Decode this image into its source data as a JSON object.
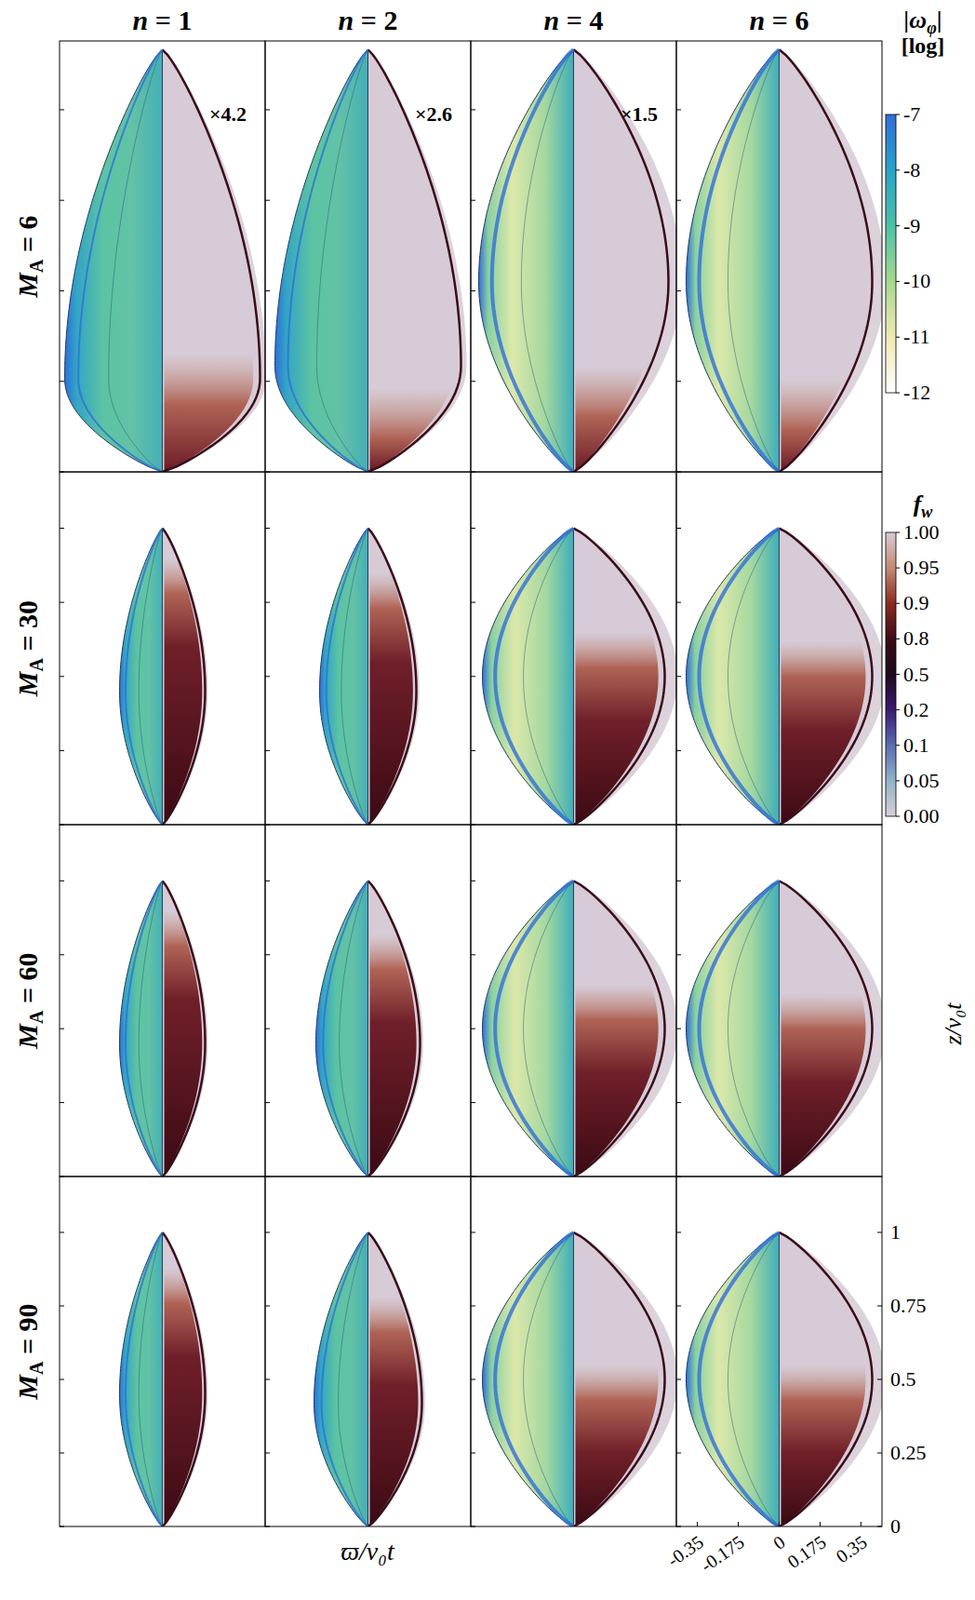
{
  "chart_data": {
    "type": "image_grid",
    "columns": [
      {
        "symbol": "n",
        "rest": " = 1"
      },
      {
        "symbol": "n",
        "rest": " = 2"
      },
      {
        "symbol": "n",
        "rest": " = 4"
      },
      {
        "symbol": "n",
        "rest": " = 6"
      }
    ],
    "rows": [
      {
        "symbol": "M",
        "subscript": "A",
        "rest": " = 6"
      },
      {
        "symbol": "M",
        "subscript": "A",
        "rest": " = 30"
      },
      {
        "symbol": "M",
        "subscript": "A",
        "rest": " = 60"
      },
      {
        "symbol": "M",
        "subscript": "A",
        "rest": " = 90"
      }
    ],
    "scale_labels": [
      "×4.2",
      "×2.6",
      "×1.5",
      null
    ],
    "x_label": "ϖ/v₀t",
    "xlim": [
      -0.44,
      0.44
    ],
    "xticks": [
      -0.35,
      -0.175,
      0,
      0.175,
      0.35
    ],
    "y_label": "z/v₀t",
    "ylim": [
      0,
      1.19
    ],
    "yticks": [
      0,
      0.25,
      0.5,
      0.75,
      1
    ],
    "colorbars": [
      {
        "label": "|ω",
        "subscript": "φ",
        "label_end": "|",
        "note": "[log]",
        "ylim": [
          -12,
          -7
        ],
        "yticks": [
          -7,
          -8,
          -9,
          -10,
          -11,
          -12
        ],
        "colors": [
          "#2e6fd8",
          "#2aa2c8",
          "#4cc2a6",
          "#a6d88e",
          "#f0eab2",
          "#ffffff"
        ]
      },
      {
        "label": "f",
        "subscript": "w",
        "label_end": null,
        "note": null,
        "ylim": [
          0,
          1
        ],
        "yticks": [
          {
            "value": 1,
            "label": "1.00"
          },
          0.95,
          0.9,
          0.8,
          0.5,
          0.2,
          0.1,
          0.05,
          {
            "value": 0,
            "label": "0.00"
          }
        ],
        "colors": [
          "#d6cad4",
          "#c28a76",
          "#8c2c22",
          "#3c0c16",
          "#1c0a1c",
          "#3a1a72",
          "#5a6cb2",
          "#92b2c8",
          "#d8d0d8"
        ]
      }
    ]
  }
}
